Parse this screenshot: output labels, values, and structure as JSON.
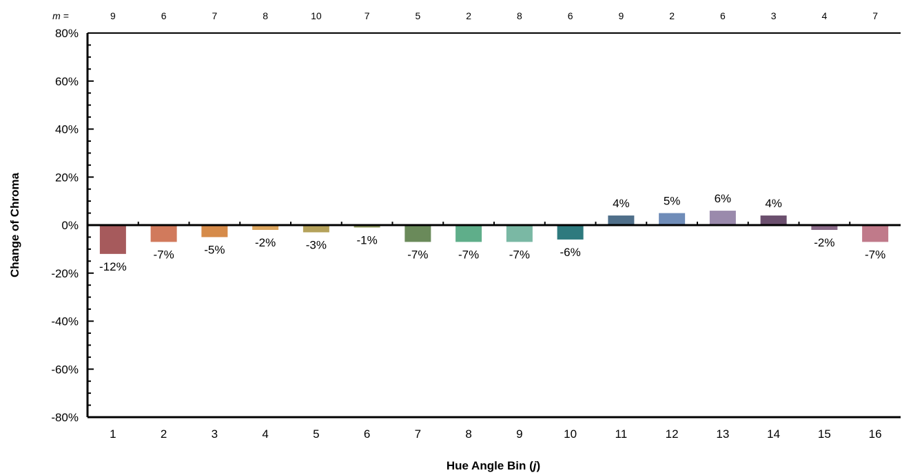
{
  "chart_data": {
    "type": "bar",
    "title": "",
    "xlabel": "Hue Angle Bin (j)",
    "xlabel_parts": {
      "before": "Hue Angle Bin (",
      "italic": "j",
      "after": ")"
    },
    "ylabel": "Change of Chroma",
    "ylim": [
      -80,
      80
    ],
    "y_ticks": [
      80,
      60,
      40,
      20,
      0,
      -20,
      -40,
      -60,
      -80
    ],
    "y_tick_labels": [
      "80%",
      "60%",
      "40%",
      "20%",
      "0%",
      "-20%",
      "-40%",
      "-60%",
      "-80%"
    ],
    "categories": [
      "1",
      "2",
      "3",
      "4",
      "5",
      "6",
      "7",
      "8",
      "9",
      "10",
      "11",
      "12",
      "13",
      "14",
      "15",
      "16"
    ],
    "values": [
      -12,
      -7,
      -5,
      -2,
      -3,
      -1,
      -7,
      -7,
      -7,
      -6,
      4,
      5,
      6,
      4,
      -2,
      -7
    ],
    "data_labels": [
      "-12%",
      "-7%",
      "-5%",
      "-2%",
      "-3%",
      "-1%",
      "-7%",
      "-7%",
      "-7%",
      "-6%",
      "4%",
      "5%",
      "6%",
      "4%",
      "-2%",
      "-7%"
    ],
    "colors": [
      "#a65a5c",
      "#d17a5c",
      "#d68b4a",
      "#dca65f",
      "#b5a25b",
      "#8f9a5e",
      "#6a8a5a",
      "#5fae8a",
      "#7ab8a4",
      "#2e7a7e",
      "#4f6f8a",
      "#6f8cb8",
      "#9a8aac",
      "#6b4f6e",
      "#8a6a88",
      "#c07a8a"
    ],
    "m_prefix": "m =",
    "m_values": [
      "9",
      "6",
      "7",
      "8",
      "10",
      "7",
      "5",
      "2",
      "8",
      "6",
      "9",
      "2",
      "6",
      "3",
      "4",
      "7"
    ],
    "grid": false,
    "legend": "none"
  }
}
